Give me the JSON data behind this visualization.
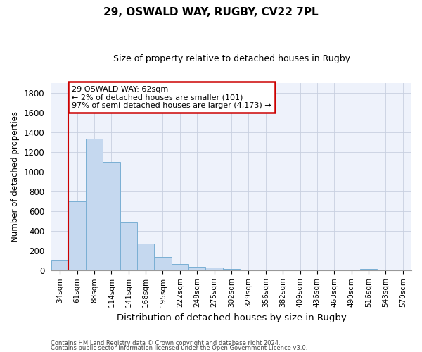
{
  "title1": "29, OSWALD WAY, RUGBY, CV22 7PL",
  "title2": "Size of property relative to detached houses in Rugby",
  "xlabel": "Distribution of detached houses by size in Rugby",
  "ylabel": "Number of detached properties",
  "categories": [
    "34sqm",
    "61sqm",
    "88sqm",
    "114sqm",
    "141sqm",
    "168sqm",
    "195sqm",
    "222sqm",
    "248sqm",
    "275sqm",
    "302sqm",
    "329sqm",
    "356sqm",
    "382sqm",
    "409sqm",
    "436sqm",
    "463sqm",
    "490sqm",
    "516sqm",
    "543sqm",
    "570sqm"
  ],
  "values": [
    100,
    700,
    1340,
    1100,
    490,
    275,
    140,
    70,
    35,
    30,
    15,
    0,
    0,
    0,
    0,
    0,
    0,
    0,
    15,
    0,
    0
  ],
  "bar_color": "#c5d8ef",
  "bar_edge_color": "#7aafd4",
  "grid_color": "#c8d0e0",
  "background_color": "#eef2fb",
  "vline_x_index": 1,
  "vline_color": "#cc0000",
  "annotation_line1": "29 OSWALD WAY: 62sqm",
  "annotation_line2": "← 2% of detached houses are smaller (101)",
  "annotation_line3": "97% of semi-detached houses are larger (4,173) →",
  "annotation_box_color": "#cc0000",
  "ylim": [
    0,
    1900
  ],
  "yticks": [
    0,
    200,
    400,
    600,
    800,
    1000,
    1200,
    1400,
    1600,
    1800
  ],
  "footer1": "Contains HM Land Registry data © Crown copyright and database right 2024.",
  "footer2": "Contains public sector information licensed under the Open Government Licence v3.0."
}
